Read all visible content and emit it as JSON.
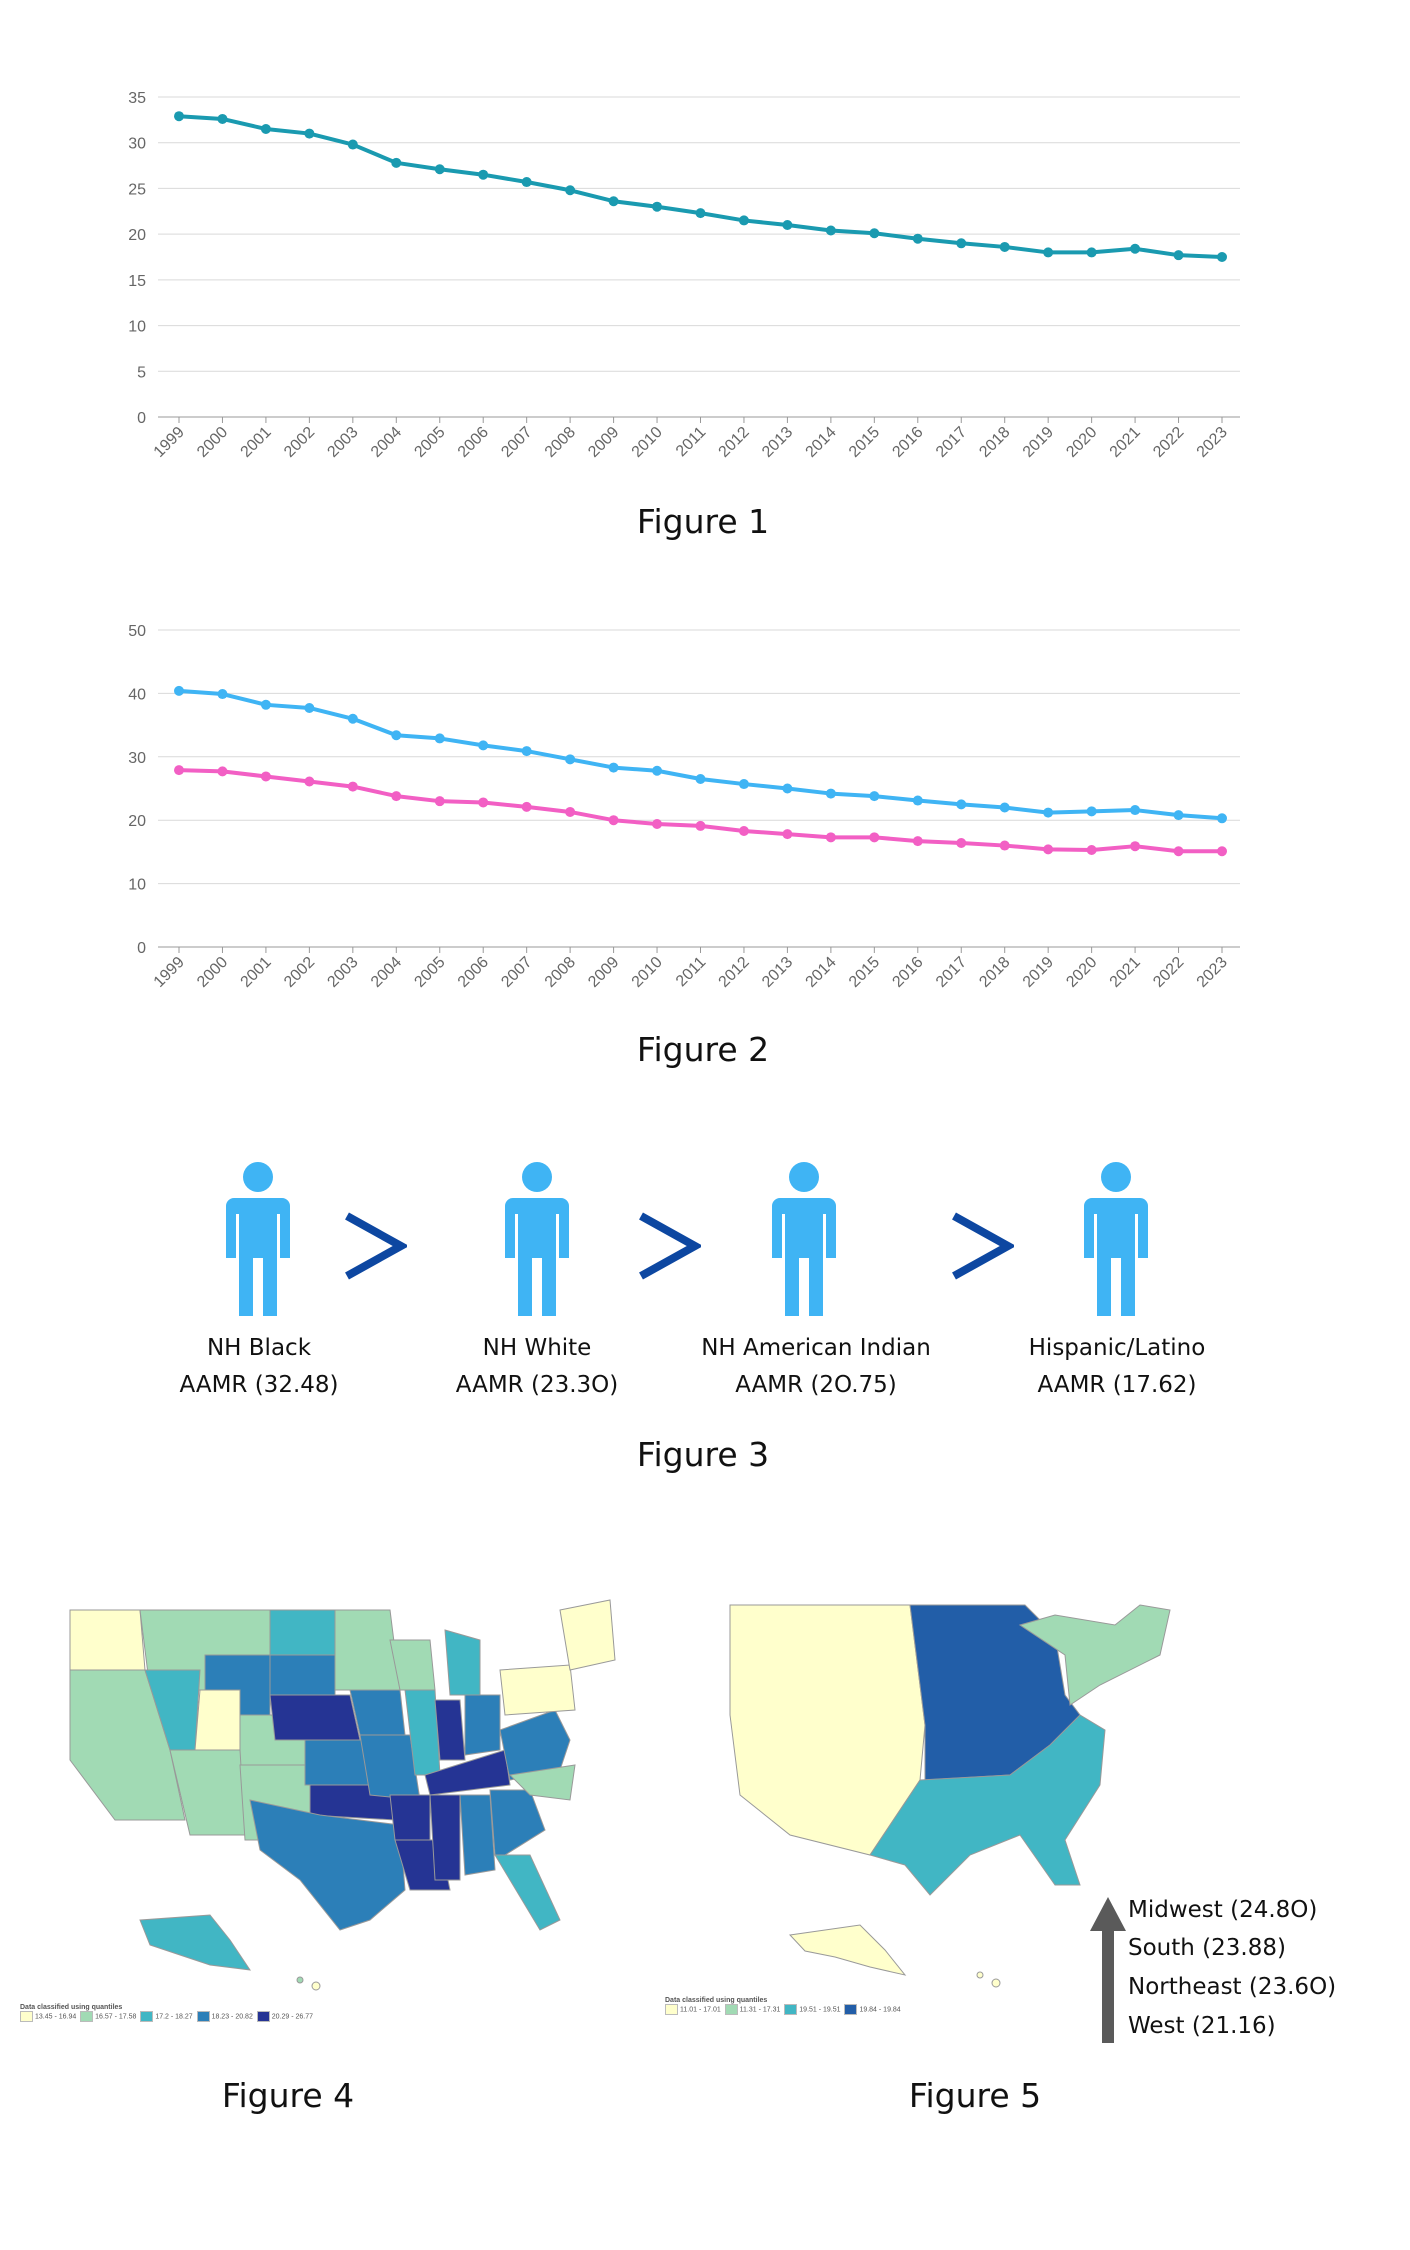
{
  "chart_data": [
    {
      "type": "line",
      "x": [
        "1999",
        "2000",
        "2001",
        "2002",
        "2003",
        "2004",
        "2005",
        "2006",
        "2007",
        "2008",
        "2009",
        "2010",
        "2011",
        "2012",
        "2013",
        "2014",
        "2015",
        "2016",
        "2017",
        "2018",
        "2019",
        "2020",
        "2021",
        "2022",
        "2023"
      ],
      "series": [
        {
          "color": "#1a9ab0",
          "values": [
            32.9,
            32.6,
            31.5,
            31.0,
            29.8,
            27.8,
            27.1,
            26.5,
            25.7,
            24.8,
            23.6,
            23.0,
            22.3,
            21.5,
            21.0,
            20.4,
            20.1,
            19.5,
            19.0,
            18.6,
            18.0,
            18.0,
            18.4,
            17.7,
            17.5
          ]
        }
      ],
      "ylim": [
        0,
        35
      ],
      "yticks": [
        0,
        5,
        10,
        15,
        20,
        25,
        30,
        35
      ],
      "grid": true,
      "caption": "Figure 1"
    },
    {
      "type": "line",
      "x": [
        "1999",
        "2000",
        "2001",
        "2002",
        "2003",
        "2004",
        "2005",
        "2006",
        "2007",
        "2008",
        "2009",
        "2010",
        "2011",
        "2012",
        "2013",
        "2014",
        "2015",
        "2016",
        "2017",
        "2018",
        "2019",
        "2020",
        "2021",
        "2022",
        "2023"
      ],
      "series": [
        {
          "color": "#3fb4f4",
          "values": [
            40.4,
            39.9,
            38.2,
            37.7,
            36.0,
            33.4,
            32.9,
            31.8,
            30.9,
            29.6,
            28.3,
            27.8,
            26.5,
            25.7,
            25.0,
            24.2,
            23.8,
            23.1,
            22.5,
            22.0,
            21.2,
            21.4,
            21.6,
            20.8,
            20.3
          ]
        },
        {
          "color": "#f25fc4",
          "values": [
            27.9,
            27.7,
            26.9,
            26.1,
            25.3,
            23.8,
            23.0,
            22.8,
            22.1,
            21.3,
            20.0,
            19.4,
            19.1,
            18.3,
            17.8,
            17.3,
            17.3,
            16.7,
            16.4,
            16.0,
            15.4,
            15.3,
            15.9,
            15.1,
            15.1
          ]
        }
      ],
      "ylim": [
        0,
        50
      ],
      "yticks": [
        0,
        10,
        20,
        30,
        40,
        50
      ],
      "grid": true,
      "caption": "Figure 2"
    }
  ],
  "figure3": {
    "caption": "Figure 3",
    "separator": ">",
    "icon": "person-icon",
    "icon_color": "#3fb4f4",
    "separator_color": "#0d47a1",
    "groups": [
      {
        "name": "NH Black",
        "value": "AAMR (32.48)"
      },
      {
        "name": "NH White",
        "value": "AAMR  (23.3O)"
      },
      {
        "name": "NH American Indian",
        "value": "AAMR  (2O.75)"
      },
      {
        "name": "Hispanic/Latino",
        "value": "AAMR (17.62)"
      }
    ]
  },
  "figure4": {
    "caption": "Figure 4",
    "legend_title": "Data classified using quantiles",
    "legend_items": [
      "13.45 - 16.94",
      "16.57 - 17.58",
      "17.2 - 18.27",
      "18.23 - 20.82",
      "20.29 - 26.77"
    ],
    "colors": [
      "#ffffcc",
      "#a1dab4",
      "#41b6c4",
      "#2c7fb8",
      "#253494"
    ]
  },
  "figure5": {
    "caption": "Figure 5",
    "legend_title": "Data classified using quantiles",
    "legend_items": [
      "11.01 - 17.01",
      "11.31 - 17.31",
      "19.51 - 19.51",
      "19.84 - 19.84"
    ],
    "colors": [
      "#ffffcc",
      "#a1dab4",
      "#41b6c4",
      "#225ea8"
    ],
    "regions": [
      {
        "label": "Midwest (24.8O)"
      },
      {
        "label": "South (23.88)"
      },
      {
        "label": "Northeast (23.6O)"
      },
      {
        "label": "West (21.16)"
      }
    ],
    "arrow_color": "#5a5a5a"
  }
}
